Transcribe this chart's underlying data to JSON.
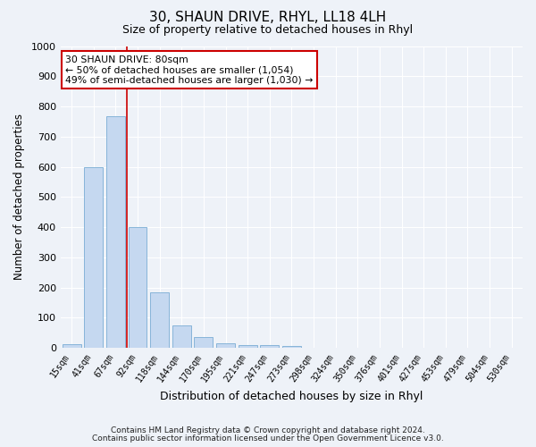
{
  "title": "30, SHAUN DRIVE, RHYL, LL18 4LH",
  "subtitle": "Size of property relative to detached houses in Rhyl",
  "xlabel": "Distribution of detached houses by size in Rhyl",
  "ylabel": "Number of detached properties",
  "bar_color": "#c5d8f0",
  "bar_edge_color": "#7aadd4",
  "background_color": "#eef2f8",
  "plot_bg_color": "#eef2f8",
  "grid_color": "#ffffff",
  "bin_labels": [
    "15sqm",
    "41sqm",
    "67sqm",
    "92sqm",
    "118sqm",
    "144sqm",
    "170sqm",
    "195sqm",
    "221sqm",
    "247sqm",
    "273sqm",
    "298sqm",
    "324sqm",
    "350sqm",
    "376sqm",
    "401sqm",
    "427sqm",
    "453sqm",
    "479sqm",
    "504sqm",
    "530sqm"
  ],
  "bar_heights": [
    13,
    600,
    767,
    400,
    185,
    75,
    35,
    15,
    10,
    10,
    7,
    0,
    0,
    0,
    0,
    0,
    0,
    0,
    0,
    0,
    0
  ],
  "ylim": [
    0,
    1000
  ],
  "yticks": [
    0,
    100,
    200,
    300,
    400,
    500,
    600,
    700,
    800,
    900,
    1000
  ],
  "vline_x": 2.5,
  "vline_color": "#cc0000",
  "annotation_title": "30 SHAUN DRIVE: 80sqm",
  "annotation_line1": "← 50% of detached houses are smaller (1,054)",
  "annotation_line2": "49% of semi-detached houses are larger (1,030) →",
  "annotation_box_color": "#ffffff",
  "annotation_box_edge": "#cc0000",
  "footer1": "Contains HM Land Registry data © Crown copyright and database right 2024.",
  "footer2": "Contains public sector information licensed under the Open Government Licence v3.0."
}
